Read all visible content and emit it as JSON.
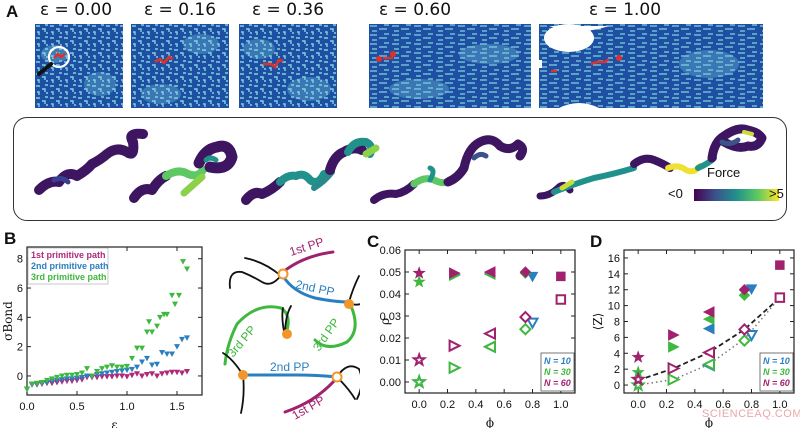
{
  "panels": {
    "A": {
      "label": "A",
      "snapshots": [
        {
          "title": "ε = 0.00",
          "strain": 0.0
        },
        {
          "title": "ε = 0.16",
          "strain": 0.16
        },
        {
          "title": "ε = 0.36",
          "strain": 0.36
        },
        {
          "title": "ε = 0.60",
          "strain": 0.6
        },
        {
          "title": "ε = 1.00",
          "strain": 1.0
        }
      ],
      "colorbar": {
        "title": "Force",
        "min_label": "<0",
        "max_label": ">5",
        "colormap": [
          "#440154",
          "#3b528b",
          "#21918c",
          "#5ec962",
          "#fde725"
        ]
      },
      "colors": {
        "matrix_dark": "#1f4fa3",
        "matrix_light": "#7fd3e0",
        "highlight": "#e0302a"
      }
    },
    "B": {
      "label": "B"
    },
    "diagram": {
      "labels": [
        "1st PP",
        "2nd PP",
        "3rd PP",
        "3rd PP",
        "2nd PP",
        "1st PP"
      ],
      "colors": {
        "first": "#a0226e",
        "second": "#2a7fc0",
        "third": "#3fb83f",
        "node": "#f2962a",
        "chain": "#111111"
      }
    },
    "C": {
      "label": "C"
    },
    "D": {
      "label": "D"
    }
  },
  "watermark": "SCIENCEAQ.COM",
  "chart_data": [
    {
      "panel": "B",
      "type": "scatter",
      "title": "",
      "xlabel": "ε",
      "ylabel": "σBond",
      "xlim": [
        0.0,
        1.75
      ],
      "ylim": [
        -1.3,
        8.8
      ],
      "xticks": [
        0.0,
        0.5,
        1.0,
        1.5
      ],
      "yticks": [
        0,
        2,
        4,
        6,
        8
      ],
      "legend_position": "upper left",
      "grid": false,
      "series": [
        {
          "name": "1st primitive path",
          "color": "#b0287a",
          "x": [
            0.0,
            0.05,
            0.1,
            0.15,
            0.2,
            0.25,
            0.3,
            0.35,
            0.4,
            0.45,
            0.5,
            0.55,
            0.6,
            0.65,
            0.7,
            0.75,
            0.8,
            0.85,
            0.9,
            0.95,
            1.0,
            1.05,
            1.1,
            1.15,
            1.2,
            1.25,
            1.3,
            1.35,
            1.4,
            1.45,
            1.5,
            1.55,
            1.6
          ],
          "y": [
            -0.9,
            -0.6,
            -0.6,
            -0.55,
            -0.5,
            -0.5,
            -0.45,
            -0.4,
            -0.35,
            -0.35,
            -0.3,
            -0.25,
            -0.1,
            -0.1,
            -0.1,
            -0.05,
            -0.05,
            -0.05,
            0.0,
            0.0,
            -0.05,
            0.05,
            0.15,
            0.0,
            0.1,
            0.15,
            0.0,
            0.15,
            0.2,
            0.25,
            0.25,
            0.2,
            0.3
          ]
        },
        {
          "name": "2nd primitive path",
          "color": "#2a7fc0",
          "x": [
            0.0,
            0.05,
            0.1,
            0.15,
            0.2,
            0.25,
            0.3,
            0.35,
            0.4,
            0.45,
            0.5,
            0.55,
            0.6,
            0.65,
            0.7,
            0.75,
            0.8,
            0.85,
            0.9,
            0.95,
            1.0,
            1.05,
            1.1,
            1.15,
            1.2,
            1.25,
            1.3,
            1.35,
            1.4,
            1.45,
            1.5,
            1.55,
            1.6
          ],
          "y": [
            -0.9,
            -0.6,
            -0.55,
            -0.5,
            -0.45,
            -0.35,
            -0.3,
            -0.25,
            -0.2,
            -0.2,
            -0.15,
            -0.1,
            0.0,
            -0.05,
            0.1,
            0.15,
            0.2,
            0.25,
            0.3,
            0.35,
            0.4,
            0.45,
            0.6,
            0.95,
            1.2,
            0.75,
            0.8,
            1.6,
            1.5,
            1.5,
            2.0,
            2.5,
            2.6
          ]
        },
        {
          "name": "3rd primitive path",
          "color": "#3fb83f",
          "x": [
            0.0,
            0.05,
            0.1,
            0.15,
            0.2,
            0.25,
            0.3,
            0.35,
            0.4,
            0.45,
            0.5,
            0.55,
            0.6,
            0.65,
            0.7,
            0.75,
            0.8,
            0.85,
            0.9,
            0.95,
            1.0,
            1.05,
            1.1,
            1.15,
            1.2,
            1.22,
            1.25,
            1.3,
            1.33,
            1.37,
            1.4,
            1.45,
            1.48,
            1.52,
            1.56,
            1.6
          ],
          "y": [
            -0.9,
            -0.55,
            -0.5,
            -0.45,
            -0.3,
            -0.2,
            -0.1,
            0.0,
            0.05,
            0.05,
            0.1,
            0.2,
            0.5,
            0.0,
            0.3,
            0.5,
            0.6,
            0.7,
            0.6,
            0.6,
            0.65,
            1.2,
            1.9,
            1.9,
            3.0,
            3.7,
            3.0,
            3.4,
            4.0,
            4.2,
            4.2,
            5.5,
            4.9,
            5.5,
            7.8,
            7.3
          ]
        }
      ]
    },
    {
      "panel": "C",
      "type": "scatter",
      "title": "",
      "xlabel": "ϕ",
      "ylabel": "ρ",
      "xlim": [
        -0.1,
        1.1
      ],
      "ylim": [
        -0.005,
        0.06
      ],
      "xticks": [
        0.0,
        0.2,
        0.4,
        0.6,
        0.8,
        1.0
      ],
      "yticks": [
        0.0,
        0.01,
        0.02,
        0.03,
        0.04,
        0.05,
        0.06
      ],
      "legend": [
        "N = 10",
        "N = 30",
        "N = 60"
      ],
      "legend_colors": [
        "#2a7fc0",
        "#3fb83f",
        "#a0226e"
      ],
      "legend_position": "lower right",
      "note": "filled markers = upper set, open markers = lower set; marker shape varies with ϕ (star 0.0, right-triangle 0.25, left-triangle 0.5, diamond 0.75, down-triangle 0.8, square 1.0)",
      "series": [
        {
          "name": "N = 10",
          "color": "#2a7fc0",
          "filled": {
            "x": [
              0.0,
              0.25,
              0.5,
              0.75,
              0.8
            ],
            "y": [
              null,
              0.049,
              0.0495,
              0.0495,
              0.048
            ]
          },
          "open": {
            "x": [
              0.0,
              0.5,
              0.8
            ],
            "y": [
              0.0,
              0.016,
              0.027
            ]
          }
        },
        {
          "name": "N = 30",
          "color": "#3fb83f",
          "filled": {
            "x": [
              0.0,
              0.25,
              0.5,
              0.75
            ],
            "y": [
              0.0455,
              0.0485,
              0.049,
              0.0495
            ]
          },
          "open": {
            "x": [
              0.0,
              0.25,
              0.5,
              0.75
            ],
            "y": [
              0.0,
              0.0065,
              0.016,
              0.024
            ]
          }
        },
        {
          "name": "N = 60",
          "color": "#a0226e",
          "filled": {
            "x": [
              0.0,
              0.25,
              0.5,
              0.75,
              1.0
            ],
            "y": [
              0.0495,
              0.0495,
              0.05,
              0.05,
              0.048
            ]
          },
          "open": {
            "x": [
              0.0,
              0.25,
              0.5,
              0.75,
              1.0
            ],
            "y": [
              0.01,
              0.0165,
              0.022,
              0.0295,
              0.0375
            ]
          }
        }
      ]
    },
    {
      "panel": "D",
      "type": "scatter",
      "title": "",
      "xlabel": "ϕ",
      "ylabel": "⟨Z⟩",
      "xlim": [
        -0.1,
        1.1
      ],
      "ylim": [
        -1,
        17
      ],
      "xticks": [
        0.0,
        0.2,
        0.4,
        0.6,
        0.8,
        1.0
      ],
      "yticks": [
        0,
        2,
        4,
        6,
        8,
        10,
        12,
        14,
        16
      ],
      "legend": [
        "N = 10",
        "N = 30",
        "N = 60"
      ],
      "legend_colors": [
        "#2a7fc0",
        "#3fb83f",
        "#a0226e"
      ],
      "legend_position": "lower right",
      "fit_lines": [
        {
          "style": "dashed",
          "color": "#222222",
          "x": [
            0.0,
            0.25,
            0.5,
            0.75,
            1.0
          ],
          "y": [
            0.6,
            2.1,
            4.1,
            7.0,
            11.0
          ]
        },
        {
          "style": "dotted",
          "color": "#777777",
          "x": [
            0.0,
            0.25,
            0.5,
            0.75,
            1.0
          ],
          "y": [
            0.0,
            0.7,
            2.6,
            5.8,
            11.0
          ]
        }
      ],
      "series": [
        {
          "name": "N = 10",
          "color": "#2a7fc0",
          "filled": {
            "x": [
              0.5,
              0.8
            ],
            "y": [
              7.1,
              12.1
            ]
          },
          "open": {
            "x": [
              0.5,
              0.8
            ],
            "y": [
              2.5,
              6.3
            ]
          }
        },
        {
          "name": "N = 30",
          "color": "#3fb83f",
          "filled": {
            "x": [
              0.0,
              0.25,
              0.5,
              0.75
            ],
            "y": [
              1.6,
              4.8,
              8.3,
              11.3
            ]
          },
          "open": {
            "x": [
              0.0,
              0.25,
              0.5,
              0.75
            ],
            "y": [
              0.0,
              0.7,
              2.6,
              5.6
            ]
          }
        },
        {
          "name": "N = 60",
          "color": "#a0226e",
          "filled": {
            "x": [
              0.0,
              0.25,
              0.5,
              0.75,
              1.0
            ],
            "y": [
              3.5,
              6.3,
              9.2,
              12.0,
              15.1
            ]
          },
          "open": {
            "x": [
              0.0,
              0.25,
              0.5,
              0.75,
              1.0
            ],
            "y": [
              0.7,
              2.1,
              4.1,
              7.0,
              11.0
            ]
          }
        }
      ]
    }
  ]
}
